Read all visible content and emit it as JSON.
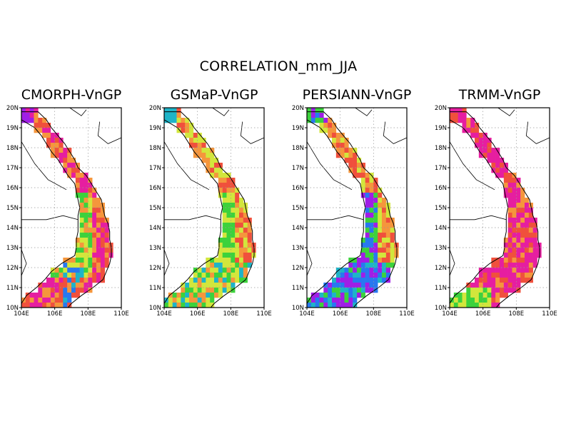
{
  "figure": {
    "title": "CORRELATION_mm_JJA"
  },
  "colors": {
    "magenta": "#e61ea0",
    "red": "#f0503c",
    "orange": "#f5963c",
    "yellow": "#d2e63c",
    "green": "#3cd23c",
    "cyan": "#1eb4c8",
    "blue": "#2878f0",
    "violet": "#a01ee6",
    "land_outline": "#000000",
    "grid": "#999999"
  },
  "axes": {
    "lat_ticks": [
      "20N",
      "19N",
      "18N",
      "17N",
      "16N",
      "15N",
      "14N",
      "13N",
      "12N",
      "11N",
      "10N"
    ],
    "lon_ticks": [
      "104E",
      "106E",
      "108E",
      "110E"
    ],
    "lat_range": [
      10,
      20
    ],
    "lon_range": [
      104,
      110
    ]
  },
  "panels": [
    {
      "name": "CMORPH-VnGP",
      "title": "CMORPH-VnGP",
      "scheme": "cmorph"
    },
    {
      "name": "GSMaP-VnGP",
      "title": "GSMaP-VnGP",
      "scheme": "gsmap"
    },
    {
      "name": "PERSIANN-VnGP",
      "title": "PERSIANN-VnGP",
      "scheme": "persiann"
    },
    {
      "name": "TRMM-VnGP",
      "title": "TRMM-VnGP",
      "scheme": "trmm"
    }
  ]
}
